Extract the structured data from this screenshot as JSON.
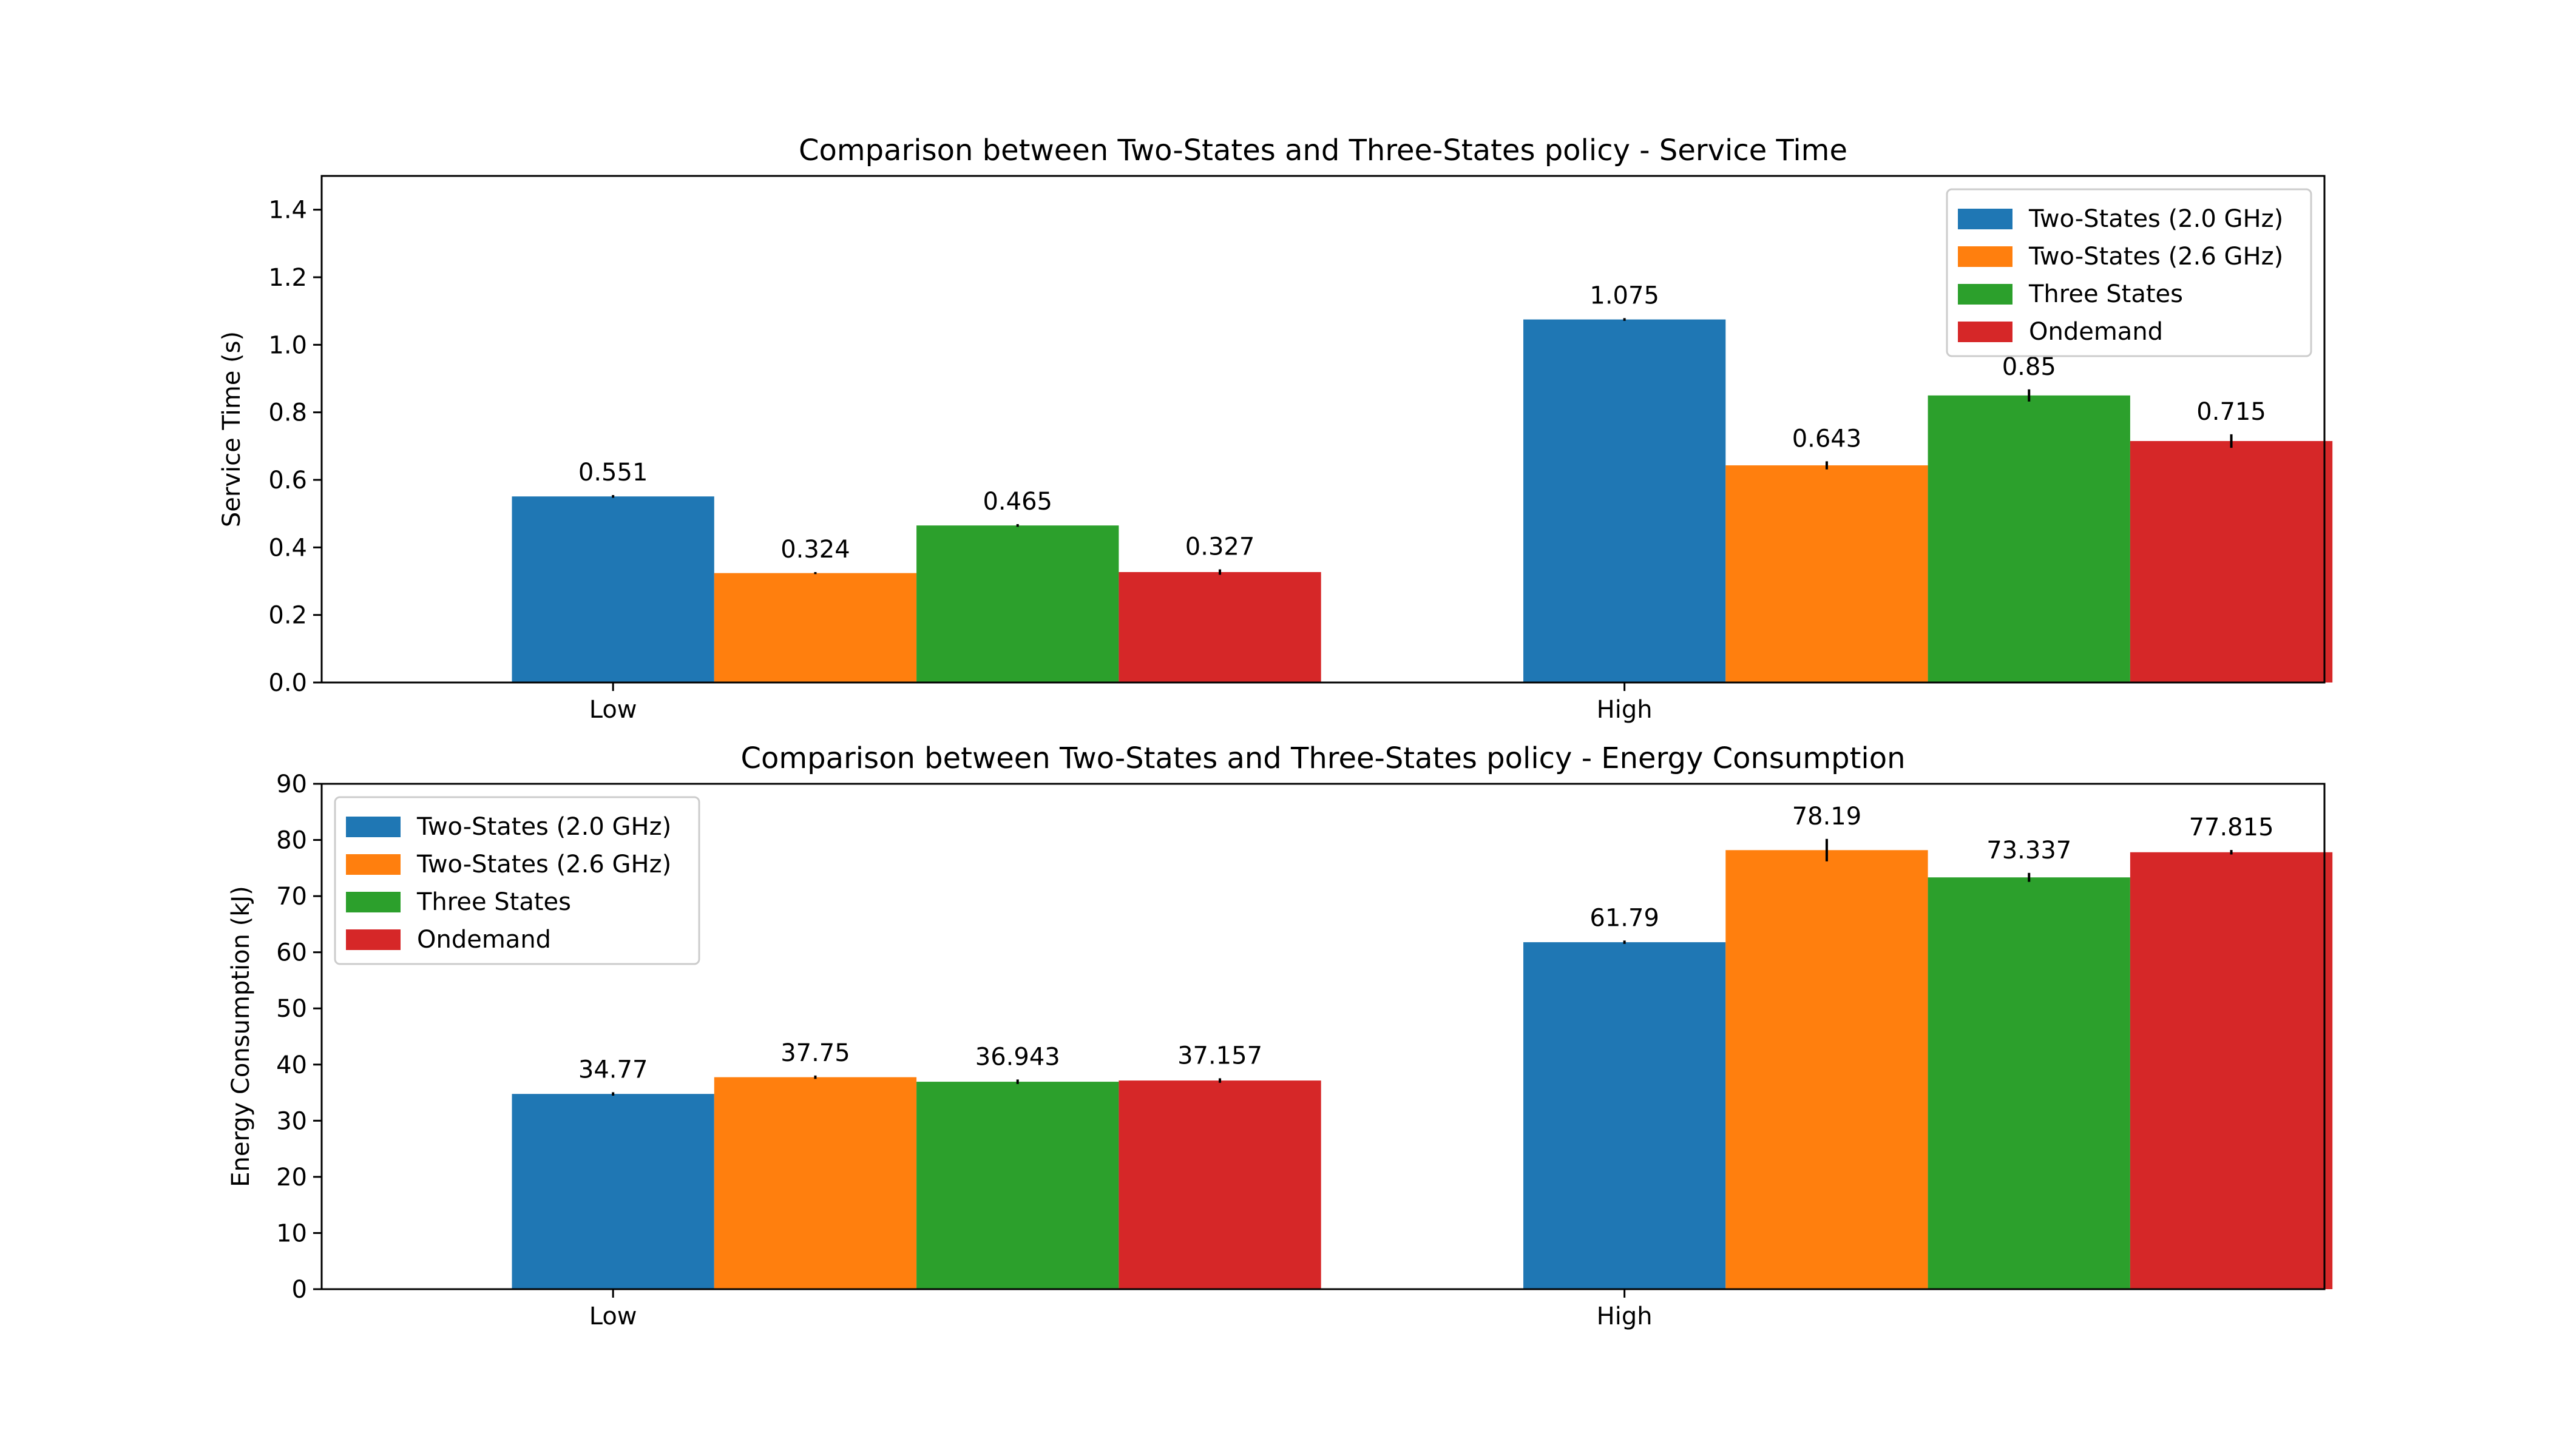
{
  "chart_data": [
    {
      "type": "bar",
      "title": "Comparison between Two-States and Three-States policy - Service Time",
      "xlabel": "",
      "ylabel": "Service Time (s)",
      "categories": [
        "Low",
        "High"
      ],
      "ylim": [
        0,
        1.5
      ],
      "yticks": [
        "0.0",
        "0.2",
        "0.4",
        "0.6",
        "0.8",
        "1.0",
        "1.2",
        "1.4"
      ],
      "legend_position": "top-right",
      "grid": false,
      "series": [
        {
          "name": "Two-States (2.0 GHz)",
          "color": "#1f77b4",
          "values": [
            0.551,
            1.075
          ],
          "labels": [
            "0.551",
            "1.075"
          ],
          "errors": [
            0.004,
            0.004
          ]
        },
        {
          "name": "Two-States (2.6 GHz)",
          "color": "#ff7f0e",
          "values": [
            0.324,
            0.643
          ],
          "labels": [
            "0.324",
            "0.643"
          ],
          "errors": [
            0.003,
            0.012
          ]
        },
        {
          "name": "Three States",
          "color": "#2ca02c",
          "values": [
            0.465,
            0.85
          ],
          "labels": [
            "0.465",
            "0.85"
          ],
          "errors": [
            0.004,
            0.018
          ]
        },
        {
          "name": "Ondemand",
          "color": "#d62728",
          "values": [
            0.327,
            0.715
          ],
          "labels": [
            "0.327",
            "0.715"
          ],
          "errors": [
            0.008,
            0.02
          ]
        }
      ]
    },
    {
      "type": "bar",
      "title": "Comparison between Two-States and Three-States policy - Energy Consumption",
      "xlabel": "",
      "ylabel": "Energy Consumption (kJ)",
      "categories": [
        "Low",
        "High"
      ],
      "ylim": [
        0,
        90
      ],
      "yticks": [
        "0",
        "10",
        "20",
        "30",
        "40",
        "50",
        "60",
        "70",
        "80",
        "90"
      ],
      "legend_position": "top-left",
      "grid": false,
      "series": [
        {
          "name": "Two-States (2.0 GHz)",
          "color": "#1f77b4",
          "values": [
            34.77,
            61.79
          ],
          "labels": [
            "34.77",
            "61.79"
          ],
          "errors": [
            0.3,
            0.3
          ]
        },
        {
          "name": "Two-States (2.6 GHz)",
          "color": "#ff7f0e",
          "values": [
            37.75,
            78.19
          ],
          "labels": [
            "37.75",
            "78.19"
          ],
          "errors": [
            0.3,
            2.0
          ]
        },
        {
          "name": "Three States",
          "color": "#2ca02c",
          "values": [
            36.943,
            73.337
          ],
          "labels": [
            "36.943",
            "73.337"
          ],
          "errors": [
            0.4,
            0.8
          ]
        },
        {
          "name": "Ondemand",
          "color": "#d62728",
          "values": [
            37.157,
            77.815
          ],
          "labels": [
            "37.157",
            "77.815"
          ],
          "errors": [
            0.4,
            0.4
          ]
        }
      ]
    }
  ]
}
